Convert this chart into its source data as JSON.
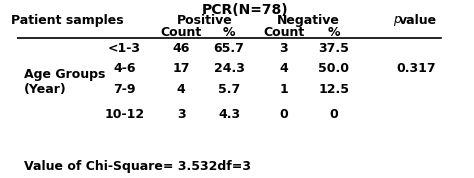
{
  "title": "PCR(N=78)",
  "col_headers": [
    "Patient samples",
    "",
    "Positive",
    "",
    "Negative",
    "",
    "p value"
  ],
  "sub_headers": [
    "",
    "",
    "Count",
    "%",
    "Count",
    "%",
    ""
  ],
  "rows": [
    [
      "",
      "<1-3",
      "46",
      "65.7",
      "3",
      "37.5",
      ""
    ],
    [
      "",
      "4-6",
      "17",
      "24.3",
      "4",
      "50.0",
      "0.317"
    ],
    [
      "",
      "7-9",
      "4",
      "5.7",
      "1",
      "12.5",
      ""
    ],
    [
      "",
      "10-12",
      "3",
      "4.3",
      "0",
      "0",
      ""
    ]
  ],
  "row_label_main": "Age Groups\n(Year)",
  "footer": "Value of Chi-Square= 3.532df=3",
  "bg_color": "#ffffff",
  "text_color": "#000000",
  "font_size": 9
}
